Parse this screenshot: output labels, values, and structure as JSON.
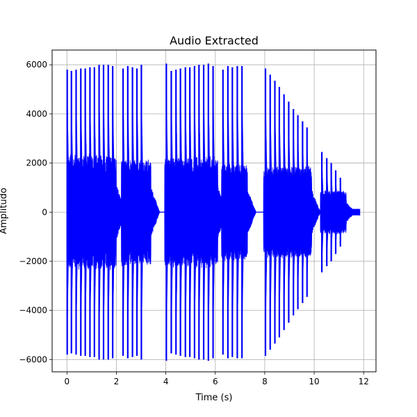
{
  "chart_data": {
    "type": "line",
    "title": "Audio Extracted",
    "xlabel": "Time (s)",
    "ylabel": "Amplitudo",
    "xlim": [
      -0.6,
      12.5
    ],
    "ylim": [
      -6500,
      6600
    ],
    "xticks": [
      0,
      2,
      4,
      6,
      8,
      10,
      12
    ],
    "yticks": [
      -6000,
      -4000,
      -2000,
      0,
      2000,
      4000,
      6000
    ],
    "grid": true,
    "color": "#0000ff",
    "series": [
      {
        "values_description_free": true,
        "bursts": [
          {
            "t": 0.0,
            "amp": 5800
          },
          {
            "t": 0.17,
            "amp": 5750
          },
          {
            "t": 0.36,
            "amp": 5800
          },
          {
            "t": 0.55,
            "amp": 5850
          },
          {
            "t": 0.73,
            "amp": 5850
          },
          {
            "t": 0.92,
            "amp": 5900
          },
          {
            "t": 1.1,
            "amp": 5900
          },
          {
            "t": 1.29,
            "amp": 6000
          },
          {
            "t": 1.47,
            "amp": 6000
          },
          {
            "t": 1.66,
            "amp": 6000
          },
          {
            "t": 1.84,
            "amp": 5950
          },
          {
            "t": 2.26,
            "amp": 5850
          },
          {
            "t": 2.45,
            "amp": 5950
          },
          {
            "t": 2.64,
            "amp": 5900
          },
          {
            "t": 2.82,
            "amp": 5850
          },
          {
            "t": 3.0,
            "amp": 6000
          },
          {
            "t": 4.01,
            "amp": 6050
          },
          {
            "t": 4.21,
            "amp": 5750
          },
          {
            "t": 4.4,
            "amp": 5800
          },
          {
            "t": 4.58,
            "amp": 5850
          },
          {
            "t": 4.78,
            "amp": 5900
          },
          {
            "t": 4.96,
            "amp": 5900
          },
          {
            "t": 5.15,
            "amp": 5950
          },
          {
            "t": 5.33,
            "amp": 6000
          },
          {
            "t": 5.52,
            "amp": 6000
          },
          {
            "t": 5.71,
            "amp": 6050
          },
          {
            "t": 5.9,
            "amp": 5950
          },
          {
            "t": 6.3,
            "amp": 5800
          },
          {
            "t": 6.5,
            "amp": 5950
          },
          {
            "t": 6.68,
            "amp": 5900
          },
          {
            "t": 6.88,
            "amp": 5950
          },
          {
            "t": 7.07,
            "amp": 5950
          },
          {
            "t": 8.02,
            "amp": 5850
          },
          {
            "t": 8.21,
            "amp": 5600
          },
          {
            "t": 8.4,
            "amp": 5350
          },
          {
            "t": 8.58,
            "amp": 5100
          },
          {
            "t": 8.77,
            "amp": 4800
          },
          {
            "t": 8.96,
            "amp": 4500
          },
          {
            "t": 9.15,
            "amp": 4200
          },
          {
            "t": 9.33,
            "amp": 3950
          },
          {
            "t": 9.52,
            "amp": 3700
          },
          {
            "t": 9.7,
            "amp": 3450
          },
          {
            "t": 10.3,
            "amp": 2450
          },
          {
            "t": 10.5,
            "amp": 2200
          },
          {
            "t": 10.68,
            "amp": 2000
          },
          {
            "t": 10.86,
            "amp": 1700
          },
          {
            "t": 11.05,
            "amp": 1400
          }
        ],
        "signal_end": 11.85
      }
    ]
  }
}
